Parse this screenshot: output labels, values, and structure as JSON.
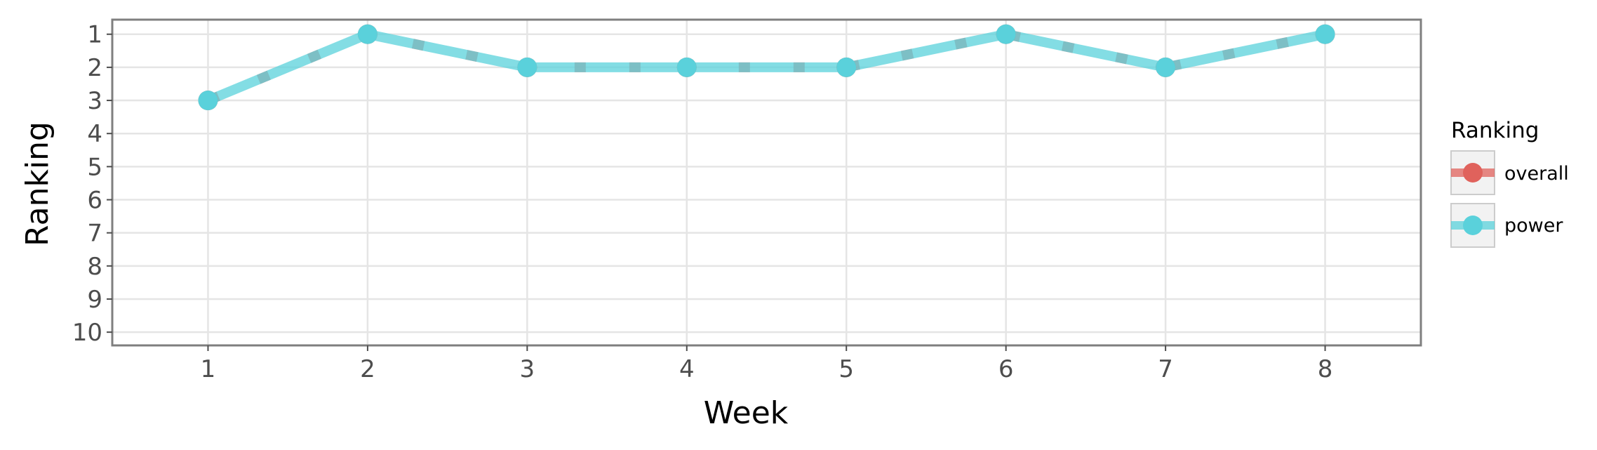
{
  "chart_data": {
    "type": "line",
    "xlabel": "Week",
    "ylabel": "Ranking",
    "x": [
      1,
      2,
      3,
      4,
      5,
      6,
      7,
      8
    ],
    "xlim": [
      0.4,
      8.6
    ],
    "ylim": [
      10.4,
      0.56
    ],
    "y_reversed": true,
    "x_ticks": [
      1,
      2,
      3,
      4,
      5,
      6,
      7,
      8
    ],
    "y_ticks": [
      1,
      2,
      3,
      4,
      5,
      6,
      7,
      8,
      9,
      10
    ],
    "grid": true,
    "legend": {
      "title": "Ranking",
      "position": "right"
    },
    "series": [
      {
        "name": "overall",
        "values": [
          3,
          1,
          2,
          2,
          2,
          1,
          2,
          1
        ],
        "color": "#e0625c",
        "line_style": "dashed"
      },
      {
        "name": "power",
        "values": [
          3,
          1,
          2,
          2,
          2,
          1,
          2,
          1
        ],
        "color": "#5ad1db",
        "line_style": "solid"
      }
    ]
  }
}
